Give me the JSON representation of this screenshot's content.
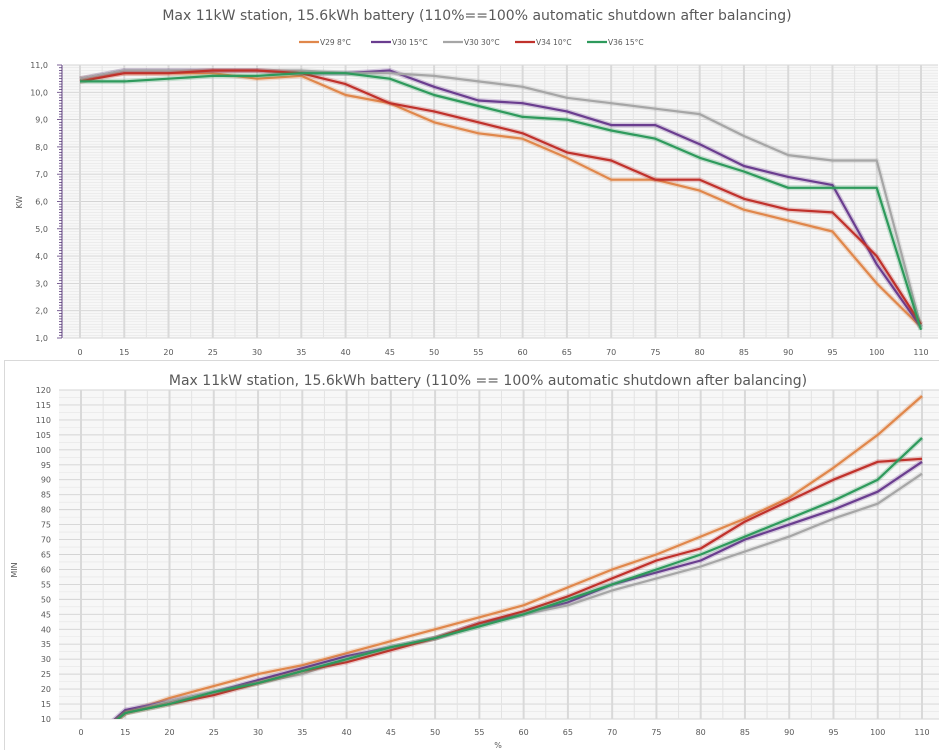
{
  "chart_data": [
    {
      "type": "line",
      "title": "Max 11kW station, 15.6kWh battery (110%==100% automatic shutdown after balancing)",
      "xlabel": "",
      "ylabel": "KW",
      "categories": [
        "0",
        "15",
        "20",
        "25",
        "30",
        "35",
        "40",
        "45",
        "50",
        "55",
        "60",
        "65",
        "70",
        "75",
        "80",
        "85",
        "90",
        "95",
        "100",
        "110"
      ],
      "ylim": [
        1.0,
        11.0
      ],
      "yticks": [
        "1,0",
        "2,0",
        "3,0",
        "4,0",
        "5,0",
        "6,0",
        "7,0",
        "8,0",
        "9,0",
        "10,0",
        "11,0"
      ],
      "grid": true,
      "legend_position": "top",
      "series": [
        {
          "name": "V29 8°C",
          "color": "#e0874b",
          "values": [
            10.5,
            10.7,
            10.7,
            10.7,
            10.5,
            10.6,
            9.9,
            9.6,
            8.9,
            8.5,
            8.3,
            7.6,
            6.8,
            6.8,
            6.4,
            5.7,
            5.3,
            4.9,
            3.0,
            1.4
          ]
        },
        {
          "name": "V30 15°C",
          "color": "#6a3d8f",
          "values": [
            10.5,
            10.8,
            10.8,
            10.8,
            10.8,
            10.7,
            10.7,
            10.8,
            10.2,
            9.7,
            9.6,
            9.3,
            8.8,
            8.8,
            8.1,
            7.3,
            6.9,
            6.6,
            3.7,
            1.4
          ]
        },
        {
          "name": "V30 30°C",
          "color": "#a6a6a6",
          "values": [
            10.5,
            10.8,
            10.8,
            10.8,
            10.8,
            10.8,
            10.7,
            10.7,
            10.6,
            10.4,
            10.2,
            9.8,
            9.6,
            9.4,
            9.2,
            8.4,
            7.7,
            7.5,
            7.5,
            1.4
          ]
        },
        {
          "name": "V34 10°C",
          "color": "#c0312b",
          "values": [
            10.4,
            10.7,
            10.7,
            10.8,
            10.8,
            10.7,
            10.3,
            9.6,
            9.3,
            8.9,
            8.5,
            7.8,
            7.5,
            6.8,
            6.8,
            6.1,
            5.7,
            5.6,
            4.0,
            1.5
          ]
        },
        {
          "name": "V36 15°C",
          "color": "#2e9a5c",
          "values": [
            10.4,
            10.4,
            10.5,
            10.6,
            10.6,
            10.7,
            10.7,
            10.5,
            9.9,
            9.5,
            9.1,
            9.0,
            8.6,
            8.3,
            7.6,
            7.1,
            6.5,
            6.5,
            6.5,
            1.3
          ]
        }
      ]
    },
    {
      "type": "line",
      "title": "Max 11kW station, 15.6kWh battery (110% == 100% automatic shutdown after balancing)",
      "xlabel": "%",
      "ylabel": "MIN",
      "categories": [
        "0",
        "15",
        "20",
        "25",
        "30",
        "35",
        "40",
        "45",
        "50",
        "55",
        "60",
        "65",
        "70",
        "75",
        "80",
        "85",
        "90",
        "95",
        "100",
        "110"
      ],
      "ylim": [
        10,
        120
      ],
      "yticks": [
        "10",
        "15",
        "20",
        "25",
        "30",
        "35",
        "40",
        "45",
        "50",
        "55",
        "60",
        "65",
        "70",
        "75",
        "80",
        "85",
        "90",
        "95",
        "100",
        "105",
        "110",
        "115",
        "120"
      ],
      "grid": true,
      "legend_position": "top",
      "series": [
        {
          "name": "V29 8°C",
          "color": "#e0874b",
          "values": [
            0,
            12,
            17,
            21,
            25,
            28,
            32,
            36,
            40,
            44,
            48,
            54,
            60,
            65,
            71,
            77,
            84,
            94,
            105,
            118
          ]
        },
        {
          "name": "V30 15°C",
          "color": "#6a3d8f",
          "values": [
            0,
            13,
            16,
            19,
            23,
            27,
            31,
            34,
            37,
            42,
            45,
            49,
            55,
            59,
            63,
            70,
            75,
            80,
            86,
            96
          ]
        },
        {
          "name": "V30 30°C",
          "color": "#a6a6a6",
          "values": [
            0,
            12,
            16,
            19,
            22,
            25,
            30,
            34,
            37,
            41,
            45,
            48,
            53,
            57,
            61,
            66,
            71,
            77,
            82,
            92
          ]
        },
        {
          "name": "V34 10°C",
          "color": "#c0312b",
          "values": [
            0,
            12,
            15,
            18,
            22,
            26,
            29,
            33,
            37,
            42,
            46,
            51,
            57,
            63,
            67,
            76,
            83,
            90,
            96,
            97
          ]
        },
        {
          "name": "V36 15°C",
          "color": "#2e9a5c",
          "values": [
            0,
            12,
            15,
            19,
            22,
            26,
            30,
            34,
            37,
            41,
            45,
            50,
            55,
            60,
            65,
            71,
            77,
            83,
            90,
            104
          ]
        }
      ]
    }
  ]
}
